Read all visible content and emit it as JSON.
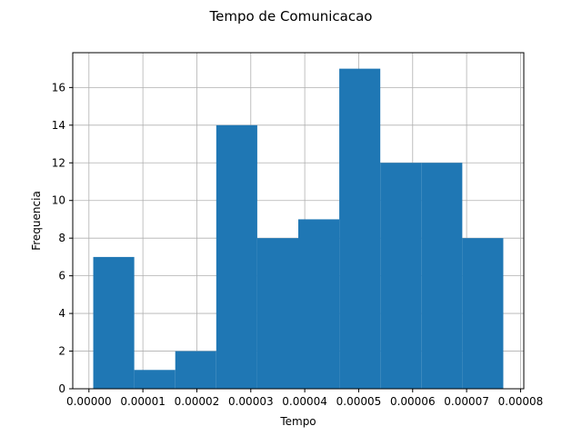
{
  "chart_data": {
    "type": "bar",
    "title": "Tempo de Comunicacao",
    "xlabel": "Tempo",
    "ylabel": "Frequencia",
    "bins": [
      {
        "start": 8e-07,
        "end": 8.4e-06,
        "count": 7
      },
      {
        "start": 8.4e-06,
        "end": 1.6e-05,
        "count": 1
      },
      {
        "start": 1.6e-05,
        "end": 2.36e-05,
        "count": 2
      },
      {
        "start": 2.36e-05,
        "end": 3.12e-05,
        "count": 14
      },
      {
        "start": 3.12e-05,
        "end": 3.88e-05,
        "count": 8
      },
      {
        "start": 3.88e-05,
        "end": 4.64e-05,
        "count": 9
      },
      {
        "start": 4.64e-05,
        "end": 5.4e-05,
        "count": 17
      },
      {
        "start": 5.4e-05,
        "end": 6.16e-05,
        "count": 12
      },
      {
        "start": 6.16e-05,
        "end": 6.92e-05,
        "count": 12
      },
      {
        "start": 6.92e-05,
        "end": 7.68e-05,
        "count": 8
      }
    ],
    "xlim": [
      -3e-06,
      8.06e-05
    ],
    "ylim": [
      0,
      17.85
    ],
    "xticks": [
      {
        "value": 0.0,
        "label": "0.00000"
      },
      {
        "value": 1e-05,
        "label": "0.00001"
      },
      {
        "value": 2e-05,
        "label": "0.00002"
      },
      {
        "value": 3e-05,
        "label": "0.00003"
      },
      {
        "value": 4e-05,
        "label": "0.00004"
      },
      {
        "value": 5e-05,
        "label": "0.00005"
      },
      {
        "value": 6e-05,
        "label": "0.00006"
      },
      {
        "value": 7e-05,
        "label": "0.00007"
      },
      {
        "value": 8e-05,
        "label": "0.00008"
      }
    ],
    "yticks": [
      {
        "value": 0,
        "label": "0"
      },
      {
        "value": 2,
        "label": "2"
      },
      {
        "value": 4,
        "label": "4"
      },
      {
        "value": 6,
        "label": "6"
      },
      {
        "value": 8,
        "label": "8"
      },
      {
        "value": 10,
        "label": "10"
      },
      {
        "value": 12,
        "label": "12"
      },
      {
        "value": 14,
        "label": "14"
      },
      {
        "value": 16,
        "label": "16"
      }
    ],
    "grid": true,
    "colors": {
      "bar": "#1f77b4",
      "grid": "#b0b0b0"
    }
  }
}
